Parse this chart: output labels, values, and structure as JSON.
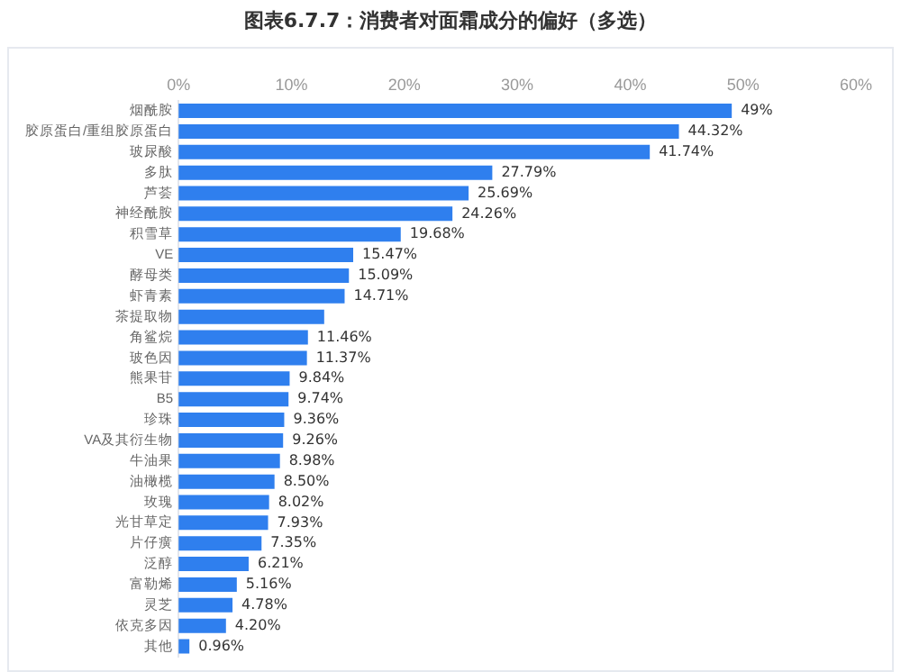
{
  "chart_data": {
    "type": "bar",
    "orientation": "horizontal",
    "title": "图表6.7.7：消费者对面霜成分的偏好（多选）",
    "categories": [
      "烟酰胺",
      "胶原蛋白/重组胶原蛋白",
      "玻尿酸",
      "多肽",
      "芦荟",
      "神经酰胺",
      "积雪草",
      "VE",
      "酵母类",
      "虾青素",
      "茶提取物",
      "角鲨烷",
      "玻色因",
      "熊果苷",
      "B5",
      "珍珠",
      "VA及其衍生物",
      "牛油果",
      "油橄榄",
      "玫瑰",
      "光甘草定",
      "片仔癀",
      "泛醇",
      "富勒烯",
      "灵芝",
      "依克多因",
      "其他"
    ],
    "values": [
      49,
      44.32,
      41.74,
      27.79,
      25.69,
      24.26,
      19.68,
      15.47,
      15.09,
      14.71,
      12.9,
      11.46,
      11.37,
      9.84,
      9.74,
      9.36,
      9.26,
      8.98,
      8.5,
      8.02,
      7.93,
      7.35,
      6.21,
      5.16,
      4.78,
      4.2,
      0.96
    ],
    "value_labels": [
      "49%",
      "44.32%",
      "41.74%",
      "27.79%",
      "25.69%",
      "24.26%",
      "19.68%",
      "15.47%",
      "15.09%",
      "14.71%",
      null,
      "11.46%",
      "11.37%",
      "9.84%",
      "9.74%",
      "9.36%",
      "9.26%",
      "8.98%",
      "8.50%",
      "8.02%",
      "7.93%",
      "7.35%",
      "6.21%",
      "5.16%",
      "4.78%",
      "4.20%",
      "0.96%"
    ],
    "color": "#2f7fee",
    "xlim": [
      0,
      60
    ],
    "xticks": [
      {
        "value": 0,
        "label": "0%"
      },
      {
        "value": 10,
        "label": "10%"
      },
      {
        "value": 20,
        "label": "20%"
      },
      {
        "value": 30,
        "label": "30%"
      },
      {
        "value": 40,
        "label": "40%"
      },
      {
        "value": 50,
        "label": "50%"
      },
      {
        "value": 60,
        "label": "60%"
      }
    ],
    "grid": false,
    "legend": false
  }
}
